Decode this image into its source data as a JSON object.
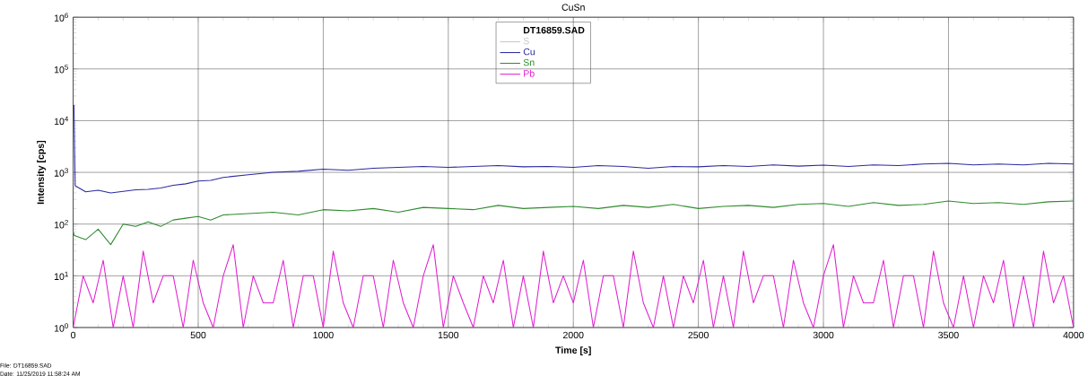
{
  "chart_data": {
    "type": "line",
    "title": "CuSn",
    "xlabel": "Time [s]",
    "ylabel": "Intensity [cps]",
    "legend_title": "DT16859.SAD",
    "log": true,
    "grid": true,
    "legend": "top",
    "marker": "none",
    "line_style": "solid",
    "xlim": [
      0,
      4000
    ],
    "xticks": [
      0,
      500,
      1000,
      1500,
      2000,
      2500,
      3000,
      3500,
      4000
    ],
    "ylim": [
      1,
      1000000
    ],
    "yticks": [
      {
        "value": 1,
        "label": "10$^{0}$"
      },
      {
        "value": 10,
        "label": "10$^{1}$"
      },
      {
        "value": 100,
        "label": "10$^{2}$"
      },
      {
        "value": 1000,
        "label": "10$^{3}$"
      },
      {
        "value": 10000,
        "label": "10$^{4}$"
      },
      {
        "value": 100000,
        "label": "10$^{5}$"
      },
      {
        "value": 1000000,
        "label": "10$^{6}$"
      }
    ],
    "annotations": [
      "File: DT16859.SAD",
      "Date: 11/25/2019 11:58:24 AM"
    ],
    "series": [
      {
        "name": "S",
        "color": "#c8c8c8"
      },
      {
        "name": "Cu",
        "color": "#2b2ba0",
        "x": [
          3,
          8,
          50,
          100,
          150,
          200,
          250,
          300,
          350,
          400,
          450,
          500,
          550,
          600,
          700,
          800,
          900,
          1000,
          1100,
          1200,
          1300,
          1400,
          1500,
          1600,
          1700,
          1800,
          1900,
          2000,
          2100,
          2200,
          2300,
          2400,
          2500,
          2600,
          2700,
          2800,
          2900,
          3000,
          3100,
          3200,
          3300,
          3400,
          3500,
          3600,
          3700,
          3800,
          3900,
          4000
        ],
        "values": [
          20000,
          550,
          420,
          450,
          400,
          430,
          460,
          470,
          500,
          560,
          600,
          680,
          700,
          800,
          900,
          1000,
          1050,
          1150,
          1100,
          1200,
          1250,
          1300,
          1250,
          1300,
          1350,
          1280,
          1300,
          1250,
          1350,
          1300,
          1200,
          1300,
          1280,
          1350,
          1300,
          1400,
          1320,
          1380,
          1300,
          1400,
          1350,
          1450,
          1500,
          1400,
          1450,
          1400,
          1500,
          1450
        ]
      },
      {
        "name": "Sn",
        "color": "#2e8b2e",
        "x": [
          0,
          5,
          50,
          100,
          150,
          200,
          250,
          300,
          350,
          400,
          450,
          500,
          550,
          600,
          700,
          800,
          900,
          1000,
          1100,
          1200,
          1300,
          1400,
          1500,
          1600,
          1700,
          1800,
          1900,
          2000,
          2100,
          2200,
          2300,
          2400,
          2500,
          2600,
          2700,
          2800,
          2900,
          3000,
          3100,
          3200,
          3300,
          3400,
          3500,
          3600,
          3700,
          3800,
          3900,
          4000
        ],
        "values": [
          70,
          60,
          50,
          80,
          40,
          100,
          90,
          110,
          90,
          120,
          130,
          140,
          120,
          150,
          160,
          170,
          150,
          190,
          180,
          200,
          170,
          210,
          200,
          190,
          230,
          200,
          210,
          220,
          200,
          230,
          210,
          240,
          200,
          220,
          230,
          210,
          240,
          250,
          220,
          260,
          230,
          240,
          280,
          250,
          260,
          240,
          270,
          280
        ]
      },
      {
        "name": "Pb",
        "color": "#e020d0",
        "x": [
          0,
          40,
          80,
          120,
          160,
          200,
          240,
          280,
          320,
          360,
          400,
          440,
          480,
          520,
          560,
          600,
          640,
          680,
          720,
          760,
          800,
          840,
          880,
          920,
          960,
          1000,
          1040,
          1080,
          1120,
          1160,
          1200,
          1240,
          1280,
          1320,
          1360,
          1400,
          1440,
          1480,
          1520,
          1560,
          1600,
          1640,
          1680,
          1720,
          1760,
          1800,
          1840,
          1880,
          1920,
          1960,
          2000,
          2040,
          2080,
          2120,
          2160,
          2200,
          2240,
          2280,
          2320,
          2360,
          2400,
          2440,
          2480,
          2520,
          2560,
          2600,
          2640,
          2680,
          2720,
          2760,
          2800,
          2840,
          2880,
          2920,
          2960,
          3000,
          3040,
          3080,
          3120,
          3160,
          3200,
          3240,
          3280,
          3320,
          3360,
          3400,
          3440,
          3480,
          3520,
          3560,
          3600,
          3640,
          3680,
          3720,
          3760,
          3800,
          3840,
          3880,
          3920,
          3960,
          4000
        ],
        "values": [
          1,
          10,
          3,
          20,
          1,
          10,
          1,
          30,
          3,
          10,
          10,
          1,
          20,
          3,
          1,
          10,
          40,
          1,
          10,
          3,
          3,
          20,
          1,
          10,
          10,
          1,
          30,
          3,
          1,
          10,
          10,
          1,
          20,
          3,
          1,
          10,
          40,
          1,
          10,
          3,
          1,
          10,
          3,
          20,
          1,
          10,
          1,
          30,
          3,
          10,
          3,
          20,
          1,
          10,
          10,
          1,
          30,
          3,
          1,
          10,
          1,
          10,
          3,
          20,
          1,
          10,
          1,
          30,
          3,
          10,
          10,
          1,
          20,
          3,
          1,
          10,
          40,
          1,
          10,
          3,
          3,
          20,
          1,
          10,
          10,
          1,
          30,
          3,
          1,
          10,
          1,
          10,
          3,
          20,
          1,
          10,
          1,
          30,
          3,
          10,
          1
        ]
      }
    ]
  }
}
